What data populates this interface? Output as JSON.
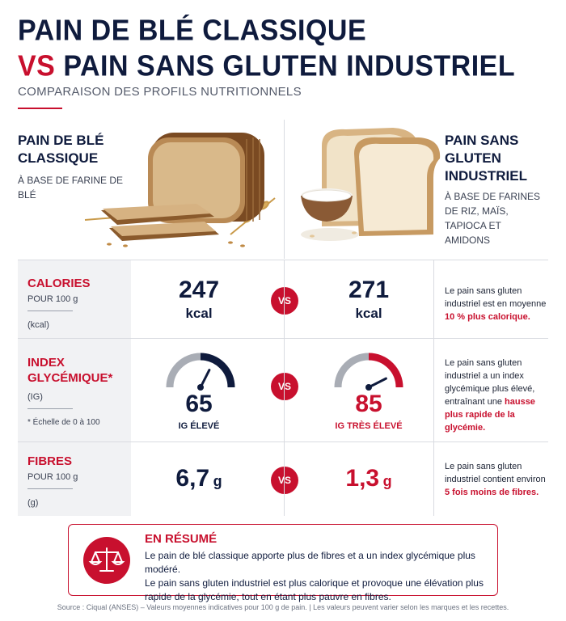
{
  "header": {
    "title_line1": "PAIN DE BLÉ CLASSIQUE",
    "title_vs": "VS",
    "title_line2_rest": "PAIN SANS GLUTEN INDUSTRIEL",
    "subtitle": "COMPARAISON DES PROFILS NUTRITIONNELS"
  },
  "products": {
    "left": {
      "name": "PAIN DE BLÉ CLASSIQUE",
      "desc": "À BASE DE FARINE DE BLÉ",
      "image_icon": "wheat-bread-loaf-icon"
    },
    "right": {
      "name": "PAIN SANS GLUTEN INDUSTRIEL",
      "desc": "À BASE DE FARINES DE RIZ, MAÏS, TAPIOCA ET AMIDONS",
      "image_icon": "gluten-free-bread-loaf-icon"
    }
  },
  "rows": {
    "calories": {
      "title": "CALORIES",
      "unit": "POUR 100 g",
      "unit_note": "(kcal)",
      "left_value": "247",
      "left_unit": "kcal",
      "right_value": "271",
      "right_unit": "kcal",
      "vs": "VS",
      "desc_text": "Le pain sans gluten industriel est en moyenne ",
      "desc_highlight": "10 % plus calorique."
    },
    "ig": {
      "title": "INDEX GLYCÉMIQUE*",
      "unit": "(IG)",
      "note": "* Échelle de 0 à 100",
      "left_value": "65",
      "left_label": "IG ÉLEVÉ",
      "left_gauge_level": 0.65,
      "right_value": "85",
      "right_label": "IG TRÈS ÉLEVÉ",
      "right_gauge_level": 0.85,
      "vs": "VS",
      "desc_text": "Le pain sans gluten industriel a un index glycémique plus élevé, entraînant une ",
      "desc_highlight": "hausse plus rapide de la glycémie."
    },
    "fibres": {
      "title": "FIBRES",
      "unit": "POUR 100 g",
      "unit_note": "(g)",
      "left_value": "6,7",
      "left_unit": "g",
      "right_value": "1,3",
      "right_unit": "g",
      "vs": "VS",
      "desc_text": "Le pain sans gluten industriel contient environ ",
      "desc_highlight": "5 fois moins de fibres."
    }
  },
  "summary": {
    "icon": "scale-balance-icon",
    "title": "EN RÉSUMÉ",
    "line1": "Le pain de blé classique apporte plus de fibres et a un index glycémique plus modéré.",
    "line2": "Le pain sans gluten industriel est plus calorique et provoque une élévation plus rapide de la glycémie, tout en étant plus pauvre en fibres."
  },
  "source": "Source : Ciqual (ANSES) – Valeurs moyennes indicatives pour 100 g de pain.  |  Les valeurs peuvent varier selon les marques et les recettes.",
  "colors": {
    "navy": "#0f1b3d",
    "red": "#c8102e",
    "gauge_track": "#a9adb5",
    "label_bg": "#f1f2f4"
  }
}
